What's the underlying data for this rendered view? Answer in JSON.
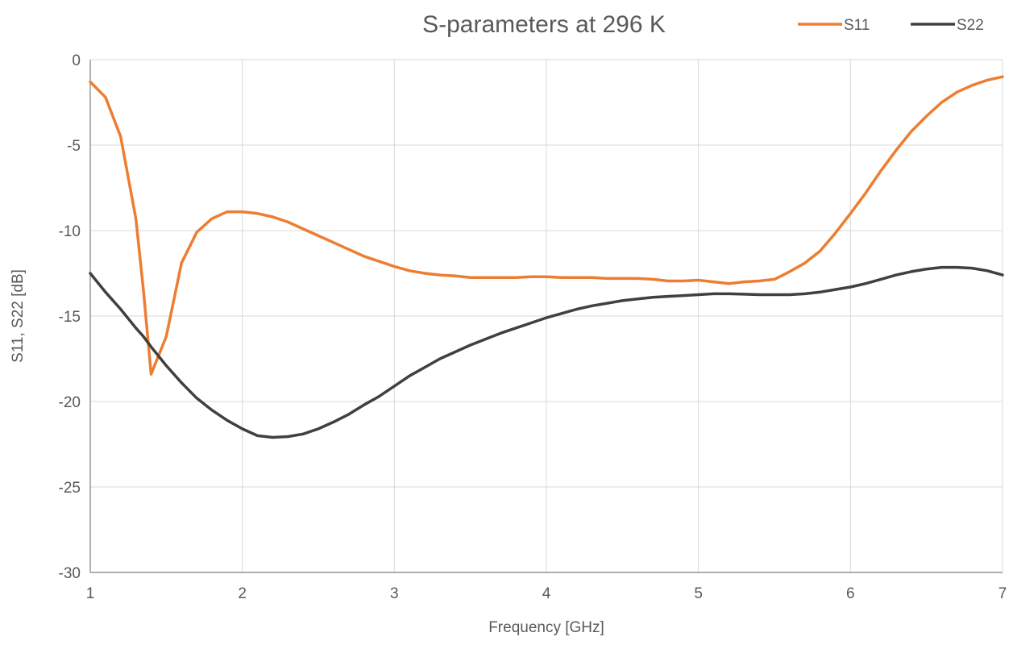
{
  "chart_data": {
    "type": "line",
    "title": "S-parameters at 296 K",
    "xlabel": "Frequency [GHz]",
    "ylabel": "S11, S22 [dB]",
    "xlim": [
      1,
      7
    ],
    "ylim": [
      -30,
      0
    ],
    "x_ticks": [
      1,
      2,
      3,
      4,
      5,
      6,
      7
    ],
    "y_ticks": [
      0,
      -5,
      -10,
      -15,
      -20,
      -25,
      -30
    ],
    "grid": true,
    "legend_position": "top-right",
    "x": [
      1.0,
      1.1,
      1.2,
      1.3,
      1.35,
      1.4,
      1.5,
      1.6,
      1.7,
      1.8,
      1.9,
      2.0,
      2.1,
      2.2,
      2.3,
      2.4,
      2.5,
      2.6,
      2.7,
      2.8,
      2.9,
      3.0,
      3.1,
      3.2,
      3.3,
      3.4,
      3.5,
      3.6,
      3.7,
      3.8,
      3.9,
      4.0,
      4.1,
      4.2,
      4.3,
      4.4,
      4.5,
      4.6,
      4.7,
      4.8,
      4.9,
      5.0,
      5.1,
      5.2,
      5.3,
      5.4,
      5.5,
      5.6,
      5.7,
      5.8,
      5.9,
      6.0,
      6.1,
      6.2,
      6.3,
      6.4,
      6.5,
      6.6,
      6.7,
      6.8,
      6.9,
      7.0
    ],
    "series": [
      {
        "name": "S11",
        "color": "#ED7D31",
        "values": [
          -1.3,
          -2.2,
          -4.5,
          -9.3,
          -13.5,
          -18.4,
          -16.2,
          -11.9,
          -10.1,
          -9.3,
          -8.9,
          -8.9,
          -9.0,
          -9.2,
          -9.5,
          -9.9,
          -10.3,
          -10.7,
          -11.1,
          -11.5,
          -11.8,
          -12.1,
          -12.35,
          -12.5,
          -12.6,
          -12.65,
          -12.75,
          -12.75,
          -12.75,
          -12.75,
          -12.7,
          -12.7,
          -12.75,
          -12.75,
          -12.75,
          -12.8,
          -12.8,
          -12.8,
          -12.85,
          -12.95,
          -12.95,
          -12.9,
          -13.0,
          -13.1,
          -13.0,
          -12.95,
          -12.85,
          -12.4,
          -11.9,
          -11.2,
          -10.15,
          -9.0,
          -7.8,
          -6.5,
          -5.3,
          -4.2,
          -3.3,
          -2.5,
          -1.9,
          -1.5,
          -1.2,
          -1.0
        ]
      },
      {
        "name": "S22",
        "color": "#404040",
        "values": [
          -12.5,
          -13.6,
          -14.6,
          -15.7,
          -16.2,
          -16.8,
          -17.9,
          -18.9,
          -19.8,
          -20.5,
          -21.1,
          -21.6,
          -22.0,
          -22.1,
          -22.05,
          -21.9,
          -21.6,
          -21.2,
          -20.75,
          -20.2,
          -19.7,
          -19.1,
          -18.5,
          -18.0,
          -17.5,
          -17.1,
          -16.7,
          -16.35,
          -16.0,
          -15.7,
          -15.4,
          -15.1,
          -14.85,
          -14.6,
          -14.4,
          -14.25,
          -14.1,
          -14.0,
          -13.9,
          -13.85,
          -13.8,
          -13.75,
          -13.7,
          -13.7,
          -13.72,
          -13.75,
          -13.75,
          -13.75,
          -13.7,
          -13.6,
          -13.45,
          -13.3,
          -13.1,
          -12.85,
          -12.6,
          -12.4,
          -12.25,
          -12.15,
          -12.15,
          -12.2,
          -12.35,
          -12.6
        ]
      }
    ]
  }
}
